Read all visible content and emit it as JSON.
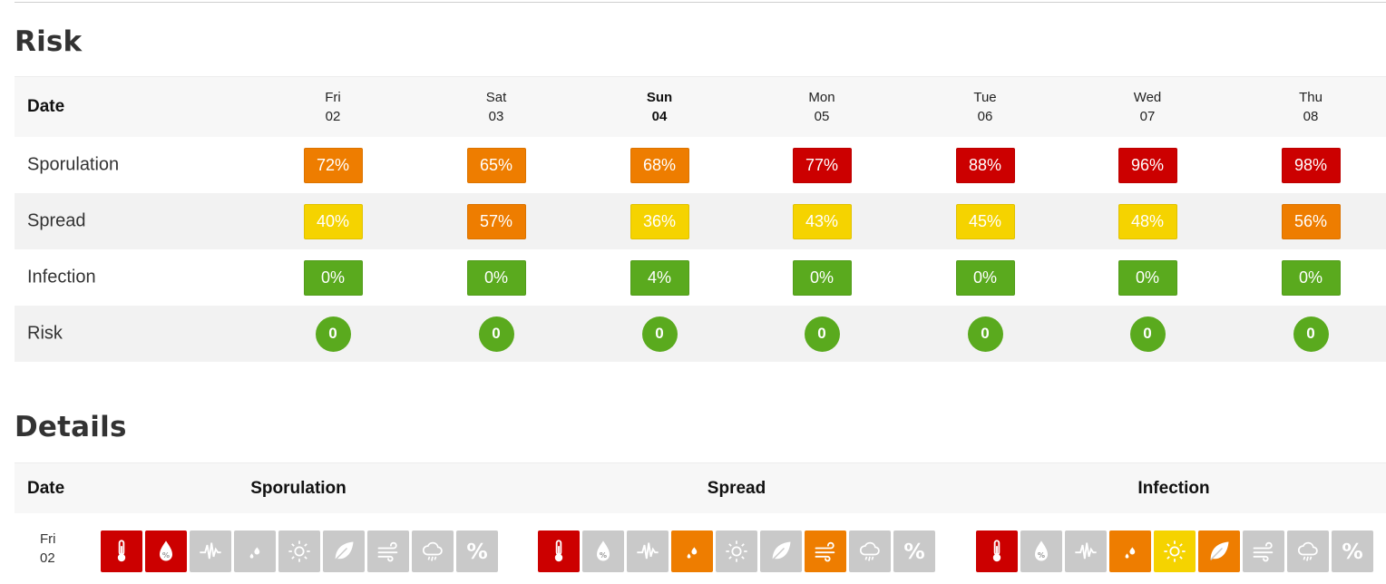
{
  "risk": {
    "title": "Risk",
    "date_label": "Date",
    "days": [
      {
        "dow": "Fri",
        "day": "02",
        "today": false
      },
      {
        "dow": "Sat",
        "day": "03",
        "today": false
      },
      {
        "dow": "Sun",
        "day": "04",
        "today": true
      },
      {
        "dow": "Mon",
        "day": "05",
        "today": false
      },
      {
        "dow": "Tue",
        "day": "06",
        "today": false
      },
      {
        "dow": "Wed",
        "day": "07",
        "today": false
      },
      {
        "dow": "Thu",
        "day": "08",
        "today": false
      }
    ],
    "rows": [
      {
        "label": "Sporulation",
        "type": "box",
        "values": [
          "72%",
          "65%",
          "68%",
          "77%",
          "88%",
          "96%",
          "98%"
        ],
        "levels": [
          "orange",
          "orange",
          "orange",
          "red",
          "red",
          "red",
          "red"
        ]
      },
      {
        "label": "Spread",
        "type": "box",
        "values": [
          "40%",
          "57%",
          "36%",
          "43%",
          "45%",
          "48%",
          "56%"
        ],
        "levels": [
          "yellow",
          "orange",
          "yellow",
          "yellow",
          "yellow",
          "yellow",
          "orange"
        ]
      },
      {
        "label": "Infection",
        "type": "box",
        "values": [
          "0%",
          "0%",
          "4%",
          "0%",
          "0%",
          "0%",
          "0%"
        ],
        "levels": [
          "green",
          "green",
          "green",
          "green",
          "green",
          "green",
          "green"
        ]
      },
      {
        "label": "Risk",
        "type": "circle",
        "values": [
          "0",
          "0",
          "0",
          "0",
          "0",
          "0",
          "0"
        ],
        "levels": [
          "green",
          "green",
          "green",
          "green",
          "green",
          "green",
          "green"
        ]
      }
    ]
  },
  "details": {
    "title": "Details",
    "date_label": "Date",
    "columns": [
      "Sporulation",
      "Spread",
      "Infection"
    ],
    "rows": [
      {
        "dow": "Fri",
        "day": "02",
        "groups": [
          [
            {
              "icon": "thermometer-icon",
              "level": "red"
            },
            {
              "icon": "humidity-drop-icon",
              "level": "red"
            },
            {
              "icon": "pulse-icon",
              "level": "grey"
            },
            {
              "icon": "droplets-icon",
              "level": "grey"
            },
            {
              "icon": "sun-icon",
              "level": "grey"
            },
            {
              "icon": "leaf-icon",
              "level": "grey"
            },
            {
              "icon": "wind-icon",
              "level": "grey"
            },
            {
              "icon": "rain-cloud-icon",
              "level": "grey"
            },
            {
              "icon": "percent-icon",
              "level": "grey"
            }
          ],
          [
            {
              "icon": "thermometer-icon",
              "level": "red"
            },
            {
              "icon": "humidity-drop-icon",
              "level": "grey"
            },
            {
              "icon": "pulse-icon",
              "level": "grey"
            },
            {
              "icon": "droplets-icon",
              "level": "orange"
            },
            {
              "icon": "sun-icon",
              "level": "grey"
            },
            {
              "icon": "leaf-icon",
              "level": "grey"
            },
            {
              "icon": "wind-icon",
              "level": "orange"
            },
            {
              "icon": "rain-cloud-icon",
              "level": "grey"
            },
            {
              "icon": "percent-icon",
              "level": "grey"
            }
          ],
          [
            {
              "icon": "thermometer-icon",
              "level": "red"
            },
            {
              "icon": "humidity-drop-icon",
              "level": "grey"
            },
            {
              "icon": "pulse-icon",
              "level": "grey"
            },
            {
              "icon": "droplets-icon",
              "level": "orange"
            },
            {
              "icon": "sun-icon",
              "level": "yellow"
            },
            {
              "icon": "leaf-icon",
              "level": "orange"
            },
            {
              "icon": "wind-icon",
              "level": "grey"
            },
            {
              "icon": "rain-cloud-icon",
              "level": "grey"
            },
            {
              "icon": "percent-icon",
              "level": "grey"
            }
          ]
        ]
      }
    ]
  }
}
